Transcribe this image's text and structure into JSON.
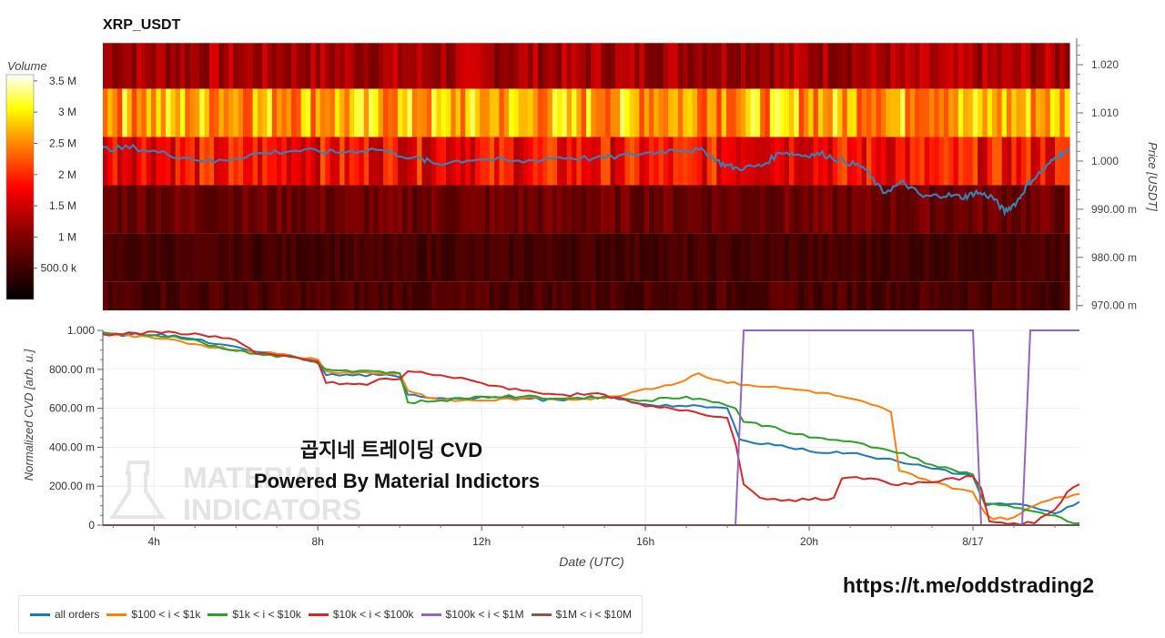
{
  "watermark": {
    "text": "곱지네 트레이딩 CVD",
    "subtitle": "Powered By Material Indictors",
    "logo_line1": "MATERIAL",
    "logo_line2": "INDICATORS",
    "link": "https://t.me/oddstrading2"
  },
  "colors": {
    "all_orders": "#1f77b4",
    "s100_1k": "#ff7f0e",
    "s1k_10k": "#2ca02c",
    "s10k_100k": "#d62728",
    "s100k_1m": "#9467bd",
    "s1m_10m": "#8c564b",
    "price_line": "#3c7fb0"
  },
  "chart_data": [
    {
      "type": "heatmap",
      "title": "XRP_USDT",
      "ylabel": "Price [USDT]",
      "colorbar_label": "Volume",
      "colorbar_ticks": [
        "3.5 M",
        "3 M",
        "2.5 M",
        "2 M",
        "1.5 M",
        "1 M",
        "500.0 k"
      ],
      "colorbar_values": [
        3500000,
        3000000,
        2500000,
        2000000,
        1500000,
        1000000,
        500000
      ],
      "colorbar_range": [
        0,
        3600000
      ],
      "y_tick_labels": [
        "1.020",
        "1.010",
        "1.000",
        "990.00 m",
        "980.00 m",
        "970.00 m"
      ],
      "y_tick_values": [
        1.02,
        1.01,
        1.0,
        0.99,
        0.98,
        0.97
      ],
      "ylim": [
        0.969,
        1.0255
      ],
      "x_range_hours": [
        2.75,
        26.6
      ],
      "price_bins": [
        {
          "low": 1.015,
          "high": 1.0245,
          "base": 1.25,
          "var": 0.35
        },
        {
          "low": 1.005,
          "high": 1.015,
          "base": 2.7,
          "var": 0.6
        },
        {
          "low": 0.995,
          "high": 1.005,
          "base": 1.8,
          "var": 0.5
        },
        {
          "low": 0.985,
          "high": 0.995,
          "base": 0.85,
          "var": 0.25
        },
        {
          "low": 0.975,
          "high": 0.985,
          "base": 0.55,
          "var": 0.15
        },
        {
          "low": 0.969,
          "high": 0.975,
          "base": 0.6,
          "var": 0.2
        }
      ],
      "price_series": {
        "x_hours": [
          2.75,
          3.5,
          4.5,
          5.5,
          6.5,
          7.5,
          8.5,
          9.5,
          10.5,
          11.0,
          12.0,
          13.0,
          14.0,
          15.0,
          16.0,
          17.0,
          17.6,
          18.0,
          18.4,
          19.0,
          19.5,
          20.0,
          20.5,
          21.0,
          21.5,
          22.0,
          22.5,
          23.0,
          23.5,
          24.0,
          24.3,
          24.7,
          25.0,
          25.3,
          25.6,
          26.0,
          26.3,
          26.6
        ],
        "y": [
          1.0025,
          1.0028,
          1.0012,
          0.9998,
          1.0015,
          1.0022,
          1.0018,
          1.0025,
          1.0005,
          0.9995,
          1.0005,
          0.9998,
          1.0008,
          1.0005,
          1.0015,
          1.0025,
          1.002,
          0.9995,
          0.9985,
          0.999,
          1.002,
          1.0012,
          1.0015,
          1.0,
          0.9988,
          0.9935,
          0.9955,
          0.9925,
          0.993,
          0.9925,
          0.9935,
          0.9925,
          0.9895,
          0.9915,
          0.9955,
          0.9985,
          1.0012,
          1.002
        ]
      }
    },
    {
      "type": "line",
      "xlabel": "Date (UTC)",
      "ylabel": "Normalized CVD [arb. u.]",
      "x_tick_labels": [
        "4h",
        "8h",
        "12h",
        "16h",
        "20h",
        "8/17"
      ],
      "x_tick_values": [
        4,
        8,
        12,
        16,
        20,
        24
      ],
      "xlim": [
        2.75,
        26.6
      ],
      "y_tick_labels": [
        "1.000",
        "800.00 m",
        "600.00 m",
        "400.00 m",
        "200.00 m",
        "0"
      ],
      "y_tick_values": [
        1.0,
        0.8,
        0.6,
        0.4,
        0.2,
        0.0
      ],
      "ylim": [
        0,
        1.0
      ],
      "series": [
        {
          "name": "all orders",
          "color_key": "all_orders",
          "x": [
            2.75,
            4.5,
            5.5,
            6.5,
            7.5,
            8.0,
            8.2,
            9.5,
            10.0,
            10.2,
            10.5,
            11.5,
            12.0,
            13.0,
            14.0,
            15.0,
            16.0,
            17.0,
            18.0,
            18.3,
            18.5,
            19.0,
            20.0,
            21.0,
            21.5,
            22.0,
            23.0,
            24.0,
            24.3,
            24.5,
            25.0,
            25.5,
            26.0,
            26.6
          ],
          "y": [
            0.98,
            0.975,
            0.93,
            0.89,
            0.86,
            0.84,
            0.77,
            0.77,
            0.76,
            0.67,
            0.66,
            0.65,
            0.66,
            0.65,
            0.64,
            0.66,
            0.62,
            0.61,
            0.6,
            0.44,
            0.43,
            0.42,
            0.38,
            0.37,
            0.35,
            0.34,
            0.29,
            0.25,
            0.11,
            0.11,
            0.11,
            0.09,
            0.06,
            0.12
          ]
        },
        {
          "name": "$100 < i < $1k",
          "color_key": "s100_1k",
          "x": [
            2.75,
            4.0,
            5.0,
            6.0,
            7.0,
            8.0,
            8.2,
            9.5,
            10.0,
            10.2,
            11.0,
            12.0,
            13.0,
            14.0,
            15.0,
            16.0,
            16.8,
            17.3,
            18.0,
            18.5,
            19.0,
            20.0,
            20.8,
            21.5,
            22.0,
            22.2,
            23.0,
            24.0,
            24.3,
            24.5,
            25.0,
            25.5,
            26.0,
            26.6
          ],
          "y": [
            0.98,
            0.96,
            0.93,
            0.9,
            0.88,
            0.85,
            0.79,
            0.78,
            0.78,
            0.69,
            0.64,
            0.64,
            0.65,
            0.65,
            0.65,
            0.7,
            0.73,
            0.78,
            0.73,
            0.72,
            0.71,
            0.69,
            0.66,
            0.62,
            0.58,
            0.28,
            0.22,
            0.17,
            0.06,
            0.03,
            0.04,
            0.1,
            0.14,
            0.16
          ]
        },
        {
          "name": "$1k < i < $10k",
          "color_key": "s1k_10k",
          "x": [
            2.75,
            4.5,
            5.5,
            6.5,
            7.5,
            8.0,
            8.2,
            9.5,
            10.0,
            10.2,
            11.0,
            12.0,
            13.0,
            14.0,
            15.0,
            16.0,
            17.0,
            17.8,
            18.2,
            18.4,
            19.0,
            20.0,
            21.0,
            21.5,
            22.0,
            22.3,
            23.0,
            24.0,
            24.3,
            24.5,
            25.0,
            25.5,
            26.0,
            26.3,
            26.6
          ],
          "y": [
            0.99,
            0.97,
            0.92,
            0.88,
            0.86,
            0.83,
            0.8,
            0.79,
            0.78,
            0.63,
            0.64,
            0.66,
            0.66,
            0.65,
            0.66,
            0.64,
            0.66,
            0.63,
            0.6,
            0.53,
            0.51,
            0.45,
            0.43,
            0.4,
            0.38,
            0.37,
            0.31,
            0.26,
            0.1,
            0.11,
            0.09,
            0.07,
            0.05,
            0.02,
            0.01
          ]
        },
        {
          "name": "$10k < i < $100k",
          "color_key": "s10k_100k",
          "x": [
            2.75,
            4.5,
            5.5,
            6.0,
            6.5,
            7.5,
            8.0,
            8.2,
            9.2,
            9.5,
            10.0,
            10.2,
            11.0,
            12.0,
            13.0,
            14.0,
            15.0,
            16.0,
            17.0,
            18.0,
            18.2,
            18.4,
            18.8,
            19.5,
            20.0,
            20.6,
            20.8,
            21.5,
            22.0,
            23.0,
            24.0,
            24.2,
            24.4,
            25.0,
            25.5,
            26.0,
            26.3,
            26.6
          ],
          "y": [
            0.98,
            0.99,
            0.97,
            0.95,
            0.88,
            0.86,
            0.84,
            0.73,
            0.72,
            0.75,
            0.75,
            0.79,
            0.77,
            0.73,
            0.69,
            0.67,
            0.67,
            0.61,
            0.59,
            0.55,
            0.42,
            0.21,
            0.14,
            0.13,
            0.13,
            0.14,
            0.24,
            0.24,
            0.21,
            0.22,
            0.25,
            0.19,
            0.02,
            0.01,
            0.01,
            0.08,
            0.17,
            0.21
          ]
        },
        {
          "name": "$100k < i < $1M",
          "color_key": "s100k_1m",
          "x": [
            2.75,
            18.2,
            18.4,
            24.0,
            24.2,
            25.2,
            25.4,
            26.6
          ],
          "y": [
            0,
            0,
            1.0,
            1.0,
            0,
            0,
            1.0,
            1.0
          ]
        },
        {
          "name": "$1M < i < $10M",
          "color_key": "s1m_10m",
          "x": [
            2.75,
            26.6
          ],
          "y": [
            0,
            0
          ]
        }
      ]
    }
  ]
}
